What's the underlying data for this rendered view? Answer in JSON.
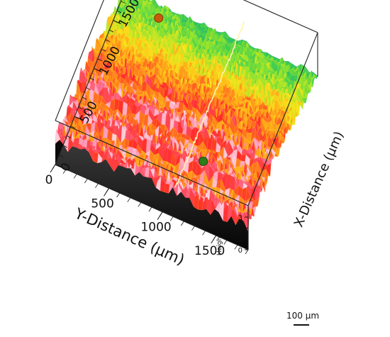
{
  "chart_data": {
    "type": "surface3d",
    "xlabel": "X-Distance (μm)",
    "ylabel": "Y-Distance (μm)",
    "zlabel": "Height (μm)",
    "x_ticks": [
      "0",
      "500",
      "1000",
      "1500"
    ],
    "y_ticks": [
      "0",
      "500",
      "1000",
      "1500"
    ],
    "z_ticks": [
      "0",
      "1",
      "2",
      "3"
    ],
    "xlim": [
      0,
      1800
    ],
    "ylim": [
      0,
      1800
    ],
    "zlim": [
      0,
      3
    ],
    "colormap": [
      "#1a3cff",
      "#22c85a",
      "#9ee62a",
      "#ffe31a",
      "#ff9a1a",
      "#ff2a2a",
      "#ff7aa0",
      "#ffd0dc"
    ],
    "scale_bar": "100 μm",
    "grid": false
  }
}
